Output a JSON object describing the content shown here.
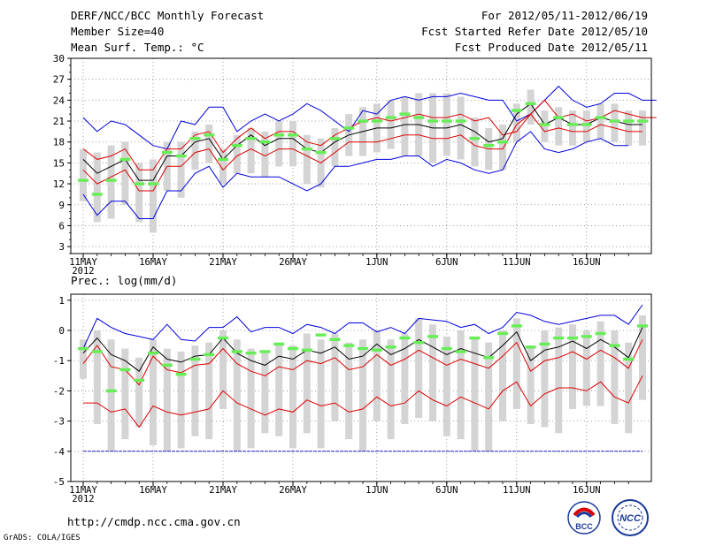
{
  "header": {
    "title": "DERF/NCC/BCC Monthly Forecast",
    "member_size": "Member Size=40",
    "variable": "Mean Surf. Temp.: °C",
    "period": "For 2012/05/11-2012/06/19",
    "fcst_started": "Fcst Started Refer Date 2012/05/10",
    "fcst_produced": "Fcst Produced Date 2012/05/11"
  },
  "footer": {
    "url": "http://cmdp.ncc.cma.gov.cn",
    "credit": "GrADS: COLA/IGES",
    "logo_bcc": "BCC",
    "logo_ncc": "NCC"
  },
  "colors": {
    "max_min": "#0000dd",
    "percentile": "#dd0000",
    "mean": "#000000",
    "box": "#d4d4d4",
    "median": "#66ee55",
    "floor": "#2222bb"
  },
  "chart_data": [
    {
      "type": "box_line",
      "title": "Mean Surf. Temp.: °C",
      "x_tick_labels": [
        "11MAY",
        "16MAY",
        "21MAY",
        "26MAY",
        "1JUN",
        "6JUN",
        "11JUN",
        "16JUN"
      ],
      "x_tick_days": [
        0,
        5,
        10,
        15,
        21,
        26,
        31,
        36
      ],
      "year_label": "2012",
      "days": 40,
      "ylim": [
        2,
        30
      ],
      "yticks": [
        3,
        6,
        9,
        12,
        15,
        18,
        21,
        24,
        27,
        30
      ],
      "series": [
        {
          "name": "max",
          "color_key": "max_min",
          "values": [
            21.5,
            19.5,
            21,
            20.5,
            19,
            17.5,
            17,
            21,
            20.5,
            23,
            23,
            19.5,
            21,
            22,
            21,
            22,
            23.5,
            22.5,
            21,
            19.5,
            22.5,
            22,
            24,
            24.5,
            24,
            24.5,
            24.5,
            25,
            24.5,
            24,
            24,
            21,
            22,
            24,
            26,
            24,
            23,
            23.5,
            25,
            25,
            24,
            24
          ]
        },
        {
          "name": "p75",
          "color_key": "percentile",
          "values": [
            17,
            15.5,
            16,
            17,
            14,
            14,
            17,
            17,
            19,
            19.5,
            16.5,
            18.5,
            20,
            18.5,
            19.5,
            19.5,
            18,
            17.5,
            19,
            20,
            21,
            21.5,
            21,
            21.5,
            22,
            21.5,
            21.5,
            22,
            21,
            21.5,
            19,
            19.5,
            22,
            24,
            21.5,
            22,
            21,
            21.5,
            22.5,
            22,
            21.5,
            21.5
          ]
        },
        {
          "name": "mean",
          "color_key": "mean",
          "values": [
            15.5,
            13.5,
            14.5,
            15.5,
            12.5,
            12.5,
            16,
            16,
            18,
            18.5,
            15.5,
            17.5,
            19,
            17.5,
            18.5,
            18.5,
            17,
            16.5,
            18,
            19,
            19.5,
            20,
            20,
            20.5,
            20.5,
            20,
            20,
            20.5,
            19.5,
            18,
            18.5,
            22,
            23.5,
            20.5,
            21.5,
            20.5,
            20.5,
            21.5,
            21,
            20.5,
            20.5
          ]
        },
        {
          "name": "p25",
          "color_key": "percentile",
          "values": [
            14,
            12,
            13,
            14,
            11,
            11,
            14.5,
            14.5,
            16.5,
            17,
            14,
            16,
            17,
            16,
            17,
            17,
            16,
            15,
            16.5,
            18,
            18,
            18,
            18.5,
            19,
            19,
            18.5,
            18.5,
            19,
            17.5,
            17,
            17,
            20.5,
            22,
            19.5,
            20,
            19.5,
            19.5,
            20.5,
            20,
            19.5,
            19.5
          ]
        },
        {
          "name": "min",
          "color_key": "max_min",
          "values": [
            10.5,
            7.5,
            9.5,
            9.5,
            7,
            7,
            11,
            11,
            13.5,
            14.5,
            11.5,
            13.5,
            13,
            13,
            13,
            12,
            11,
            12,
            14.5,
            14.5,
            15,
            15.5,
            15.5,
            16,
            16,
            14.5,
            15.5,
            15,
            14,
            13.5,
            14,
            18,
            19.5,
            17,
            16.5,
            17,
            18,
            18.5,
            17.5,
            17.5
          ]
        },
        {
          "name": "box_top",
          "color_key": "box",
          "values": [
            17,
            16.5,
            17.5,
            18,
            15,
            15.5,
            18,
            18,
            19.5,
            20.5,
            17,
            19,
            20,
            19.5,
            21,
            21,
            19,
            18.5,
            20,
            22,
            23,
            23.5,
            24,
            24.5,
            25,
            25,
            25,
            24.5,
            21.5,
            20,
            20.5,
            23.5,
            25.5,
            22.5,
            23,
            22.5,
            22.5,
            23.5,
            23.5,
            22.5,
            22.5
          ]
        },
        {
          "name": "box_bottom",
          "color_key": "box",
          "values": [
            9.5,
            6.5,
            7,
            9,
            6.5,
            5,
            11,
            10,
            14,
            15,
            12,
            13.5,
            13.5,
            13,
            14.5,
            14.5,
            12,
            11.5,
            14.5,
            16,
            16,
            16.5,
            17,
            16,
            16,
            15,
            16,
            15.5,
            14.5,
            14,
            14,
            18,
            20.5,
            18,
            17.5,
            17.5,
            18,
            18.5,
            18,
            17.5,
            17.5
          ]
        },
        {
          "name": "median",
          "color_key": "median",
          "values": [
            12.5,
            10.5,
            12.5,
            15.5,
            12,
            12,
            16.5,
            16,
            18.5,
            19,
            15.5,
            17.5,
            18.5,
            18,
            19,
            19,
            17,
            16.5,
            18.5,
            20,
            21,
            21,
            21.5,
            22,
            21.5,
            21,
            21,
            21,
            18.5,
            17.5,
            18,
            22.5,
            23.5,
            20.5,
            21.5,
            20.5,
            20.5,
            21.5,
            21,
            21,
            21
          ]
        }
      ]
    },
    {
      "type": "box_line",
      "title": "Prec.: log(mm/d)",
      "x_tick_labels": [
        "11MAY",
        "16MAY",
        "21MAY",
        "26MAY",
        "1JUN",
        "6JUN",
        "11JUN",
        "16JUN"
      ],
      "x_tick_days": [
        0,
        5,
        10,
        15,
        21,
        26,
        31,
        36
      ],
      "year_label": "2012",
      "days": 40,
      "ylim": [
        -5,
        1.2
      ],
      "yticks": [
        -5,
        -4,
        -3,
        -2,
        -1,
        0,
        1
      ],
      "series": [
        {
          "name": "max",
          "color_key": "max_min",
          "values": [
            -0.6,
            0.4,
            0.1,
            -0.1,
            -0.2,
            -0.3,
            0.2,
            -0.3,
            -0.35,
            0.1,
            0.1,
            0.45,
            -0.05,
            0.1,
            0.1,
            -0.1,
            0.2,
            0.1,
            -0.1,
            0.25,
            0.25,
            -0.05,
            0.1,
            -0.1,
            0.4,
            0.35,
            0.3,
            0.1,
            0.2,
            -0.1,
            0.1,
            0.6,
            0.5,
            0.3,
            0.2,
            0.3,
            0.4,
            0.5,
            0.5,
            0.2,
            0.85
          ]
        },
        {
          "name": "mean",
          "color_key": "mean",
          "values": [
            -0.75,
            -0.25,
            -0.8,
            -1.0,
            -1.35,
            -0.55,
            -0.95,
            -1.05,
            -0.85,
            -0.8,
            -0.25,
            -0.75,
            -1.0,
            -1.15,
            -0.85,
            -0.95,
            -0.65,
            -0.75,
            -0.55,
            -0.95,
            -0.85,
            -0.45,
            -0.8,
            -0.6,
            -0.3,
            -0.55,
            -0.8,
            -0.6,
            -0.75,
            -0.9,
            -0.5,
            -0.05,
            -1.0,
            -0.65,
            -0.55,
            -0.35,
            -0.6,
            -0.3,
            -0.55,
            -0.9,
            0.1
          ]
        },
        {
          "name": "p75",
          "color_key": "percentile",
          "values": [
            -1.1,
            -0.5,
            -1.2,
            -1.3,
            -1.8,
            -0.85,
            -1.3,
            -1.4,
            -1.15,
            -1.1,
            -0.6,
            -1.1,
            -1.35,
            -1.5,
            -1.2,
            -1.3,
            -1.0,
            -1.1,
            -0.9,
            -1.3,
            -1.2,
            -0.8,
            -1.15,
            -0.95,
            -0.65,
            -0.9,
            -1.15,
            -0.95,
            -1.1,
            -1.25,
            -0.85,
            -0.4,
            -1.35,
            -1.0,
            -0.9,
            -0.7,
            -0.95,
            -0.65,
            -0.9,
            -1.25,
            -0.3
          ]
        },
        {
          "name": "p25",
          "color_key": "percentile",
          "values": [
            -2.4,
            -2.4,
            -2.7,
            -2.6,
            -3.2,
            -2.5,
            -2.7,
            -2.8,
            -2.7,
            -2.6,
            -2.0,
            -2.4,
            -2.6,
            -2.8,
            -2.6,
            -2.7,
            -2.3,
            -2.5,
            -2.4,
            -2.7,
            -2.6,
            -2.2,
            -2.5,
            -2.4,
            -2.0,
            -2.3,
            -2.5,
            -2.2,
            -2.4,
            -2.6,
            -2.0,
            -1.7,
            -2.5,
            -2.1,
            -1.9,
            -1.9,
            -2.0,
            -1.7,
            -2.2,
            -2.4,
            -1.5
          ]
        },
        {
          "name": "floor",
          "color_key": "floor",
          "values": [
            -4,
            -4,
            -4,
            -4,
            -4,
            -4,
            -4,
            -4,
            -4,
            -4,
            -4,
            -4,
            -4,
            -4,
            -4,
            -4,
            -4,
            -4,
            -4,
            -4,
            -4,
            -4,
            -4,
            -4,
            -4,
            -4,
            -4,
            -4,
            -4,
            -4,
            -4,
            -4,
            -4,
            -4,
            -4,
            -4,
            -4,
            -4,
            -4,
            -4,
            -4
          ]
        },
        {
          "name": "box_top",
          "color_key": "box",
          "values": [
            -0.3,
            0.0,
            -0.3,
            -0.6,
            -0.9,
            -0.3,
            -0.6,
            -0.7,
            -0.5,
            -0.4,
            0.0,
            -0.3,
            -0.6,
            -0.7,
            -0.4,
            -0.5,
            -0.1,
            -0.3,
            -0.1,
            -0.4,
            -0.3,
            0.0,
            -0.3,
            -0.1,
            0.4,
            0.2,
            -0.2,
            0.0,
            -0.2,
            -0.4,
            0.0,
            0.4,
            -0.5,
            0.0,
            0.1,
            0.2,
            0.0,
            0.3,
            0.0,
            -0.4,
            0.5
          ]
        },
        {
          "name": "box_bottom",
          "color_key": "box",
          "values": [
            -1.6,
            -3.1,
            -4.0,
            -3.6,
            -3.2,
            -3.8,
            -4.0,
            -3.9,
            -3.5,
            -3.6,
            -2.6,
            -4.0,
            -3.9,
            -3.4,
            -3.5,
            -3.9,
            -3.4,
            -3.9,
            -3.0,
            -3.6,
            -4.0,
            -3.0,
            -3.6,
            -3.1,
            -2.9,
            -3.0,
            -3.5,
            -3.6,
            -4.0,
            -4.0,
            -3.0,
            -2.6,
            -3.1,
            -3.2,
            -3.4,
            -2.6,
            -2.5,
            -2.5,
            -3.1,
            -3.4,
            -2.3
          ]
        },
        {
          "name": "median",
          "color_key": "median",
          "values": [
            -0.6,
            -0.7,
            -2.0,
            -1.3,
            -1.65,
            -0.75,
            -1.15,
            -1.45,
            -0.95,
            -0.8,
            -0.25,
            -0.7,
            -0.75,
            -0.7,
            -0.45,
            -0.6,
            -0.65,
            -0.15,
            -0.3,
            -0.5,
            -0.6,
            -0.65,
            -0.55,
            -0.25,
            -0.4,
            -0.2,
            -0.6,
            -0.7,
            -0.25,
            -0.9,
            -0.1,
            0.15,
            -0.55,
            -0.45,
            -0.25,
            -0.25,
            -0.2,
            -0.1,
            -0.5,
            -0.95,
            0.15
          ]
        }
      ]
    }
  ]
}
